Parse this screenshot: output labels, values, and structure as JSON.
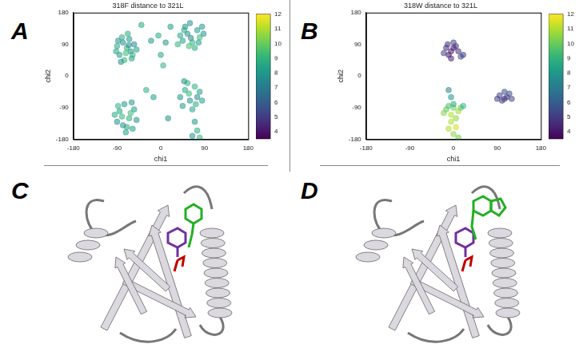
{
  "chart_data": [
    {
      "panel": "A",
      "type": "scatter",
      "title": "318F distance to 321L",
      "x_label": "chi1",
      "y_label": "chi2",
      "xlim": [
        -180,
        180
      ],
      "xticks": [
        -180,
        -90,
        0,
        90,
        180
      ],
      "ylim": [
        -180,
        180
      ],
      "yticks": [
        -180,
        -90,
        0,
        90,
        180
      ],
      "x": [
        -85,
        -78,
        -70,
        -62,
        -90,
        -75,
        -65,
        -55,
        -80,
        -60,
        -72,
        -88,
        -50,
        -68,
        -82,
        -58,
        -92,
        -66,
        45,
        55,
        65,
        75,
        50,
        80,
        40,
        60,
        70,
        85,
        35,
        62,
        48,
        78,
        58,
        88,
        -85,
        -75,
        -65,
        -55,
        -90,
        -70,
        -80,
        -60,
        -50,
        -88,
        -72,
        -62,
        -78,
        -95,
        -58,
        50,
        60,
        70,
        45,
        75,
        55,
        65,
        80,
        40,
        58,
        72,
        48,
        85,
        70,
        75,
        65,
        80,
        -20,
        -5,
        10,
        0,
        5,
        -15,
        15,
        -30,
        20,
        -40
      ],
      "y": [
        60,
        95,
        80,
        70,
        85,
        45,
        105,
        90,
        110,
        50,
        65,
        100,
        75,
        120,
        40,
        60,
        70,
        88,
        100,
        120,
        95,
        130,
        140,
        110,
        115,
        150,
        80,
        140,
        90,
        108,
        130,
        95,
        85,
        120,
        -100,
        -80,
        -120,
        -95,
        -130,
        -145,
        -115,
        -75,
        -125,
        -85,
        -160,
        -105,
        -140,
        -110,
        -150,
        -40,
        -70,
        -30,
        -85,
        -60,
        -20,
        -95,
        -45,
        -60,
        -50,
        -80,
        -15,
        -70,
        -130,
        -155,
        -170,
        -175,
        100,
        115,
        95,
        60,
        30,
        -60,
        -120,
        -40,
        140,
        145
      ],
      "distance": [
        8.2,
        7.6,
        8.8,
        7.9,
        8.5,
        9.1,
        8.0,
        7.4,
        8.6,
        8.3,
        9.3,
        7.8,
        8.1,
        8.7,
        7.7,
        9.0,
        8.4,
        7.5,
        8.3,
        7.8,
        8.9,
        8.1,
        7.6,
        9.2,
        8.5,
        7.9,
        8.7,
        8.0,
        9.0,
        7.4,
        8.6,
        8.2,
        9.4,
        7.7,
        8.4,
        7.9,
        8.8,
        8.1,
        7.6,
        8.5,
        9.1,
        8.0,
        7.7,
        8.9,
        8.3,
        9.3,
        7.8,
        8.6,
        8.2,
        8.5,
        7.8,
        8.9,
        8.2,
        7.6,
        9.0,
        8.4,
        8.1,
        7.9,
        9.2,
        8.7,
        7.7,
        8.3,
        8.0,
        8.6,
        7.8,
        8.9,
        8.0,
        8.6,
        7.9,
        8.4,
        9.0,
        8.2,
        7.7,
        8.8,
        8.1,
        8.5
      ],
      "colorbar": {
        "range": [
          3.5,
          12
        ],
        "ticks": [
          4,
          5,
          6,
          7,
          8,
          9,
          10,
          11,
          12
        ]
      }
    },
    {
      "panel": "B",
      "type": "scatter",
      "title": "318W distance to 321L",
      "x_label": "chi1",
      "y_label": "chi2",
      "xlim": [
        -180,
        180
      ],
      "xticks": [
        -180,
        -90,
        0,
        90,
        180
      ],
      "ylim": [
        -180,
        180
      ],
      "yticks": [
        -180,
        -90,
        0,
        90,
        180
      ],
      "x": [
        -15,
        -5,
        5,
        -10,
        0,
        10,
        -20,
        -5,
        15,
        20,
        0,
        -12,
        -10,
        0,
        10,
        -5,
        5,
        -15,
        0,
        15,
        -5,
        5,
        -10,
        0,
        10,
        -5,
        -10,
        20,
        -20,
        95,
        105,
        115,
        100,
        110,
        120,
        105,
        90
      ],
      "y": [
        80,
        70,
        85,
        60,
        95,
        70,
        65,
        50,
        55,
        60,
        80,
        90,
        -85,
        -90,
        -100,
        -110,
        -120,
        -95,
        -80,
        -90,
        -130,
        -145,
        -150,
        -165,
        -175,
        -60,
        -40,
        -85,
        -105,
        -55,
        -65,
        -50,
        -70,
        -60,
        -65,
        -45,
        -65
      ],
      "distance": [
        4.5,
        4.2,
        4.8,
        4.0,
        5.2,
        4.6,
        5.0,
        4.3,
        5.5,
        4.9,
        4.1,
        4.7,
        9.5,
        10.2,
        10.8,
        11.0,
        10.5,
        9.8,
        8.6,
        9.9,
        10.9,
        11.3,
        11.0,
        10.6,
        10.0,
        8.0,
        7.4,
        9.0,
        10.4,
        5.2,
        4.9,
        5.5,
        5.0,
        4.7,
        5.3,
        5.6,
        5.1
      ],
      "colorbar": {
        "range": [
          3.5,
          12
        ],
        "ticks": [
          4,
          5,
          6,
          7,
          8,
          9,
          10,
          11,
          12
        ]
      }
    }
  ],
  "structure_panels": [
    {
      "panel": "C"
    },
    {
      "panel": "D"
    }
  ]
}
